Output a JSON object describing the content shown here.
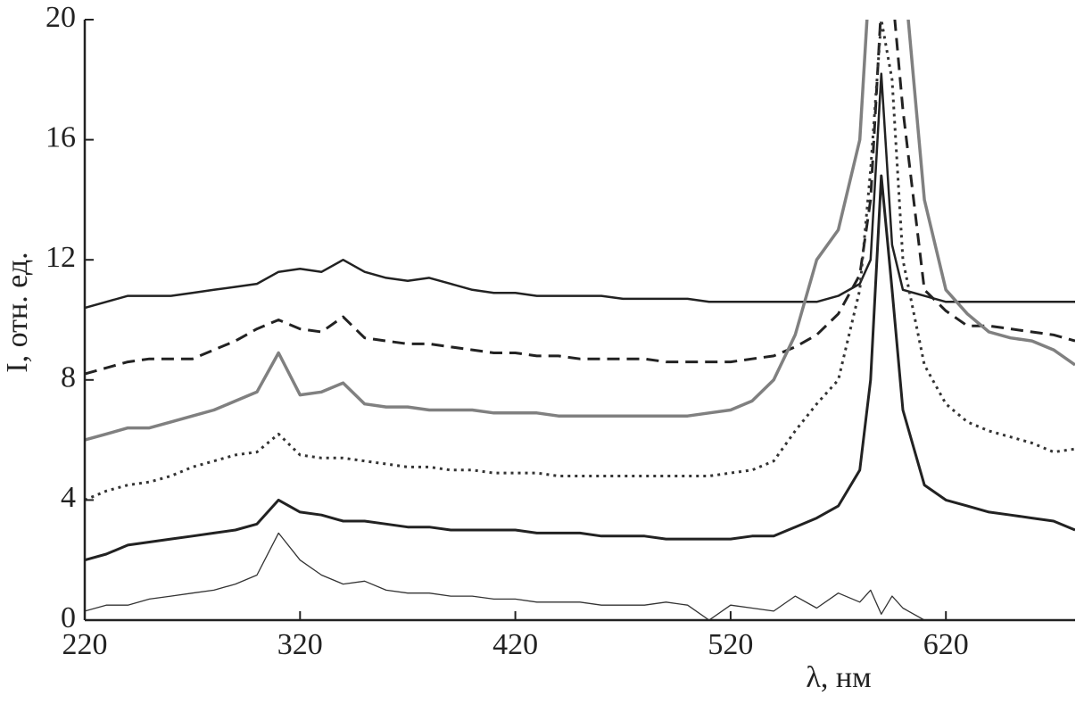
{
  "chart_data": {
    "type": "line",
    "xlabel": "λ, нм",
    "ylabel": "I, отн. ед.",
    "x": [
      220,
      230,
      240,
      250,
      260,
      270,
      280,
      290,
      300,
      310,
      320,
      330,
      340,
      350,
      360,
      370,
      380,
      390,
      400,
      410,
      420,
      430,
      440,
      450,
      460,
      470,
      480,
      490,
      500,
      510,
      520,
      530,
      540,
      550,
      560,
      570,
      580,
      585,
      590,
      595,
      600,
      610,
      620,
      630,
      640,
      650,
      660,
      670,
      680
    ],
    "series": [
      {
        "color": "#222222",
        "dash": "solid",
        "width": 2.5,
        "values": [
          10.4,
          10.6,
          10.8,
          10.8,
          10.8,
          10.9,
          11.0,
          11.1,
          11.2,
          11.6,
          11.7,
          11.6,
          12.0,
          11.6,
          11.4,
          11.3,
          11.4,
          11.2,
          11.0,
          10.9,
          10.9,
          10.8,
          10.8,
          10.8,
          10.8,
          10.7,
          10.7,
          10.7,
          10.7,
          10.6,
          10.6,
          10.6,
          10.6,
          10.6,
          10.6,
          10.8,
          11.2,
          12.0,
          18.2,
          12.5,
          11.0,
          10.8,
          10.6,
          10.6,
          10.6,
          10.6,
          10.6,
          10.6,
          10.6
        ]
      },
      {
        "color": "#222222",
        "dash": "dashed",
        "width": 3,
        "values": [
          8.2,
          8.4,
          8.6,
          8.7,
          8.7,
          8.7,
          9.0,
          9.3,
          9.7,
          10.0,
          9.7,
          9.6,
          10.1,
          9.4,
          9.3,
          9.2,
          9.2,
          9.1,
          9.0,
          8.9,
          8.9,
          8.8,
          8.8,
          8.7,
          8.7,
          8.7,
          8.7,
          8.6,
          8.6,
          8.6,
          8.6,
          8.7,
          8.8,
          9.1,
          9.5,
          10.2,
          11.5,
          14.0,
          20.5,
          21.0,
          17.0,
          11.0,
          10.3,
          9.8,
          9.8,
          9.7,
          9.6,
          9.5,
          9.3
        ]
      },
      {
        "color": "#808080",
        "dash": "solid",
        "width": 3.5,
        "values": [
          6.0,
          6.2,
          6.4,
          6.4,
          6.6,
          6.8,
          7.0,
          7.3,
          7.6,
          8.9,
          7.5,
          7.6,
          7.9,
          7.2,
          7.1,
          7.1,
          7.0,
          7.0,
          7.0,
          6.9,
          6.9,
          6.9,
          6.8,
          6.8,
          6.8,
          6.8,
          6.8,
          6.8,
          6.8,
          6.9,
          7.0,
          7.3,
          8.0,
          9.5,
          12.0,
          13.0,
          16.0,
          22.0,
          25.0,
          25.0,
          22.0,
          14.0,
          11.0,
          10.2,
          9.6,
          9.4,
          9.3,
          9.0,
          8.5
        ]
      },
      {
        "color": "#333333",
        "dash": "dotted",
        "width": 3,
        "values": [
          4.0,
          4.3,
          4.5,
          4.6,
          4.8,
          5.1,
          5.3,
          5.5,
          5.6,
          6.2,
          5.5,
          5.4,
          5.4,
          5.3,
          5.2,
          5.1,
          5.1,
          5.0,
          5.0,
          4.9,
          4.9,
          4.9,
          4.8,
          4.8,
          4.8,
          4.8,
          4.8,
          4.8,
          4.8,
          4.8,
          4.9,
          5.0,
          5.3,
          6.3,
          7.2,
          8.0,
          11.0,
          15.0,
          20.0,
          18.0,
          12.0,
          8.5,
          7.2,
          6.6,
          6.3,
          6.1,
          5.9,
          5.6,
          5.7
        ]
      },
      {
        "color": "#222222",
        "dash": "solid",
        "width": 3,
        "values": [
          2.0,
          2.2,
          2.5,
          2.6,
          2.7,
          2.8,
          2.9,
          3.0,
          3.2,
          4.0,
          3.6,
          3.5,
          3.3,
          3.3,
          3.2,
          3.1,
          3.1,
          3.0,
          3.0,
          3.0,
          3.0,
          2.9,
          2.9,
          2.9,
          2.8,
          2.8,
          2.8,
          2.7,
          2.7,
          2.7,
          2.7,
          2.8,
          2.8,
          3.1,
          3.4,
          3.8,
          5.0,
          8.0,
          14.8,
          11.0,
          7.0,
          4.5,
          4.0,
          3.8,
          3.6,
          3.5,
          3.4,
          3.3,
          3.0
        ]
      },
      {
        "color": "#333333",
        "dash": "solid",
        "width": 1.3,
        "values": [
          0.3,
          0.5,
          0.5,
          0.7,
          0.8,
          0.9,
          1.0,
          1.2,
          1.5,
          2.9,
          2.0,
          1.5,
          1.2,
          1.3,
          1.0,
          0.9,
          0.9,
          0.8,
          0.8,
          0.7,
          0.7,
          0.6,
          0.6,
          0.6,
          0.5,
          0.5,
          0.5,
          0.6,
          0.5,
          0.0,
          0.5,
          0.4,
          0.3,
          0.8,
          0.4,
          0.9,
          0.6,
          1.0,
          0.2,
          0.8,
          0.4,
          0.0,
          null,
          null,
          null,
          null,
          null,
          null,
          null
        ]
      }
    ],
    "xlim": [
      220,
      680
    ],
    "ylim": [
      0,
      20
    ],
    "xticks": [
      220,
      320,
      420,
      520,
      620
    ],
    "yticks": [
      0,
      4,
      8,
      12,
      16,
      20
    ]
  }
}
